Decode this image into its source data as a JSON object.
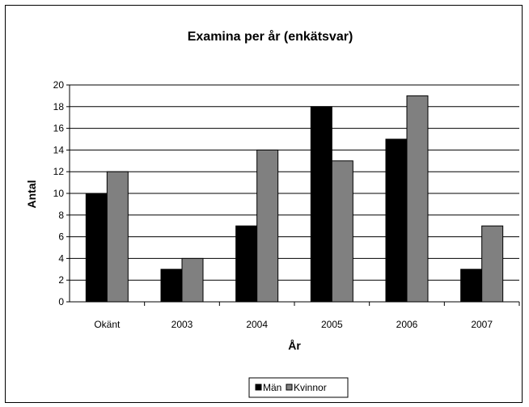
{
  "chart_data": {
    "type": "bar",
    "title": "Examina per år (enkätsvar)",
    "xlabel": "År",
    "ylabel": "Antal",
    "categories": [
      "Okänt",
      "2003",
      "2004",
      "2005",
      "2006",
      "2007"
    ],
    "series": [
      {
        "name": "Män",
        "color": "#000000",
        "values": [
          10,
          3,
          7,
          18,
          15,
          3
        ]
      },
      {
        "name": "Kvinnor",
        "color": "#808080",
        "values": [
          12,
          4,
          14,
          13,
          19,
          7
        ]
      }
    ],
    "ylim": [
      0,
      20
    ],
    "yticks": [
      "0",
      "2",
      "4",
      "6",
      "8",
      "10",
      "12",
      "14",
      "16",
      "18",
      "20"
    ],
    "grid": true,
    "legend_position": "bottom"
  }
}
